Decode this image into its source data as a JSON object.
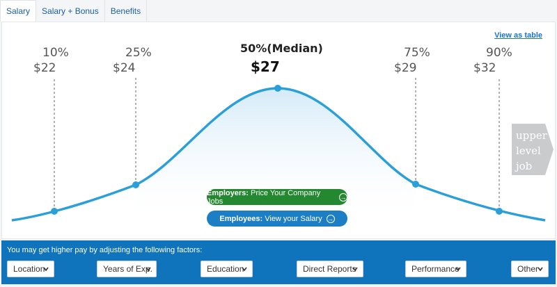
{
  "tabs": [
    {
      "label": "Salary",
      "active": true
    },
    {
      "label": "Salary + Bonus",
      "active": false
    },
    {
      "label": "Benefits",
      "active": false
    }
  ],
  "view_as_table": "View as table",
  "percentiles": [
    {
      "pct": "10%",
      "value": "$22"
    },
    {
      "pct": "25%",
      "value": "$24"
    },
    {
      "pct": "50%(Median)",
      "value": "$27"
    },
    {
      "pct": "75%",
      "value": "$29"
    },
    {
      "pct": "90%",
      "value": "$32"
    }
  ],
  "upper_level": "upper\nlevel\njob",
  "employers_button": {
    "bold": "Employers:",
    "text": "Price Your Company Jobs",
    "color": "#23882f"
  },
  "employees_button": {
    "bold": "Employees:",
    "text": "View your Salary",
    "color": "#1c7fc6"
  },
  "factors": {
    "title": "You may get higher pay by adjusting the following factors:",
    "selects": [
      {
        "label": "Location"
      },
      {
        "label": "Years of Exp."
      },
      {
        "label": "Education"
      },
      {
        "label": "Direct Reports"
      },
      {
        "label": "Performance"
      },
      {
        "label": "Other"
      }
    ]
  },
  "colors": {
    "curve": "#2a9fd8",
    "accent": "#0f74bb"
  }
}
